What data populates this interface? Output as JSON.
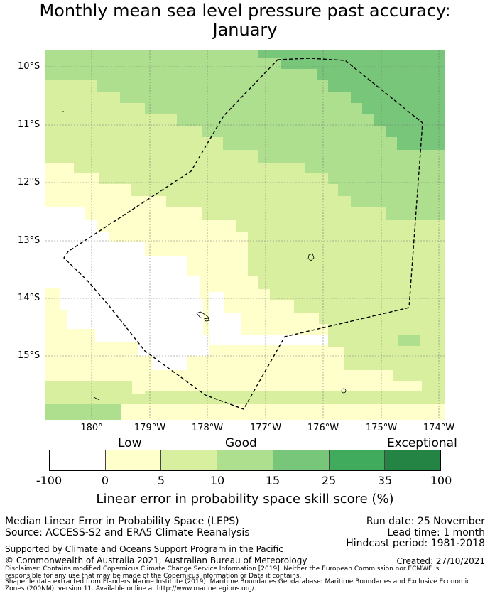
{
  "title": {
    "line1": "Monthly mean sea level pressure past accuracy:",
    "line2": "January"
  },
  "map": {
    "lat_labels": [
      "10°S",
      "11°S",
      "12°S",
      "13°S",
      "14°S",
      "15°S"
    ],
    "lon_labels": [
      "180°",
      "179°W",
      "178°W",
      "177°W",
      "176°W",
      "175°W",
      "174°W"
    ],
    "colors": {
      "c0": "#ffffff",
      "c1": "#ffffcc",
      "c2": "#d9efa0",
      "c3": "#addf8e",
      "c4": "#78c679",
      "c5": "#41ab5d",
      "c6": "#238443"
    }
  },
  "colorbar": {
    "categories": [
      "Low",
      "Good",
      "Exceptional"
    ],
    "ticks": [
      "-100",
      "0",
      "5",
      "10",
      "15",
      "25",
      "35",
      "100"
    ],
    "label": "Linear error in probability space skill score (%)"
  },
  "footer": {
    "left1": "Median Linear Error in Probability Space (LEPS)",
    "left2": "Source: ACCESS-S2 and ERA5 Climate Reanalysis",
    "run_date": "Run date: 25 November",
    "lead_time": "Lead time: 1 month",
    "hindcast": "Hindcast period: 1981-2018",
    "support": "Supported by Climate and Oceans Support Program in the Pacific",
    "copyright": "© Commonwealth of Australia 2021, Australian Bureau of Meteorology",
    "created": "Created: 27/10/2021",
    "disclaimer1": "Disclaimer: Contains modified Copernicus Climate Change Service Information [2019]. Neither the European Commission nor ECMWF is",
    "disclaimer2": "responsible for any use that may be made of the Copernicus Information or Data it contains.",
    "disclaimer3": "Shapefile data extracted from Flanders Marine Institute (2019). Maritime Boundaries Geodatabase: Maritime Boundaries and Exclusive Economic",
    "disclaimer4": "Zones (200NM), version 11. Available online at http://www.marineregions.org/."
  }
}
